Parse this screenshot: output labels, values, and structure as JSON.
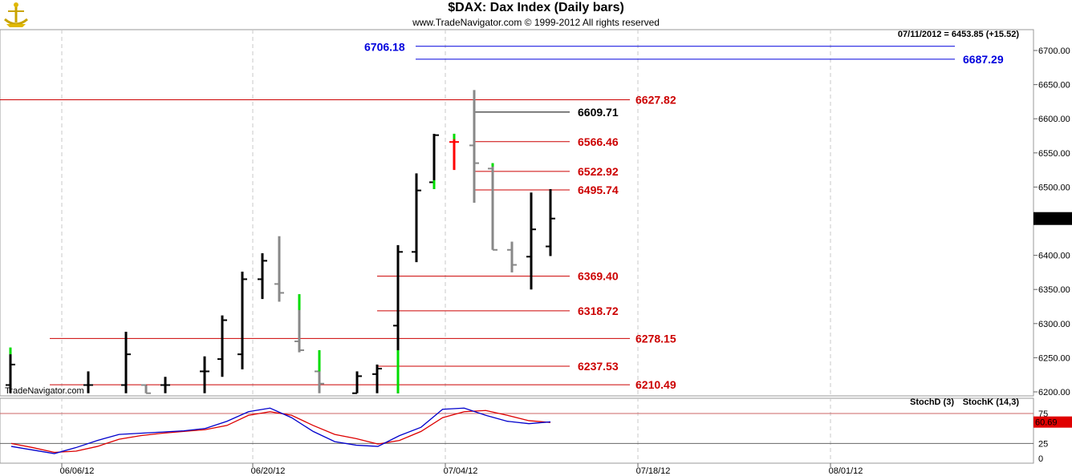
{
  "header": {
    "title": "$DAX:  Dax Index  (Daily bars)",
    "subtitle": "www.TradeNavigator.com © 1999-2012 All rights reserved",
    "last_value_label": "07/11/2012 = 6453.85 (+15.52)",
    "watermark": "TradeNavigator.com",
    "logo_icon": "trade-navigator-logo-icon"
  },
  "chart_data": [
    {
      "type": "ohlc",
      "y_ticks": [
        "6700.00",
        "6650.00",
        "6600.00",
        "6550.00",
        "6500.00",
        "6450.00",
        "6400.00",
        "6350.00",
        "6300.00",
        "6250.00",
        "6200.00"
      ],
      "ylim": [
        6195,
        6735
      ],
      "x_ticks": [
        "06/06/12",
        "06/20/12",
        "07/04/12",
        "07/18/12",
        "08/01/12"
      ],
      "last_price_marker": "6453.85",
      "colors": {
        "up": "#000000",
        "down": "#888888",
        "new_high": "#00dd00",
        "last": "#ff0000"
      },
      "bars": [
        {
          "open": 6210,
          "high": 6260,
          "low": 6198,
          "close": 6240
        },
        {
          "open": 6210,
          "high": 6230,
          "low": 6198,
          "close": 6210
        },
        {
          "open": 6210,
          "high": 6288,
          "low": 6198,
          "close": 6255
        },
        {
          "open": 6210,
          "high": 6210,
          "low": 6198,
          "close": 6198
        },
        {
          "open": 6210,
          "high": 6222,
          "low": 6198,
          "close": 6210
        },
        {
          "open": 6230,
          "high": 6252,
          "low": 6198,
          "close": 6230
        },
        {
          "open": 6248,
          "high": 6312,
          "low": 6222,
          "close": 6305
        },
        {
          "open": 6255,
          "high": 6376,
          "low": 6233,
          "close": 6365
        },
        {
          "open": 6365,
          "high": 6403,
          "low": 6336,
          "close": 6392
        },
        {
          "open": 6358,
          "high": 6428,
          "low": 6332,
          "close": 6345
        },
        {
          "open": 6274,
          "high": 6343,
          "low": 6258,
          "close": 6261
        },
        {
          "open": 6230,
          "high": 6261,
          "low": 6198,
          "close": 6212
        },
        {
          "open": 6198,
          "high": 6230,
          "low": 6198,
          "close": 6223
        },
        {
          "open": 6226,
          "high": 6240,
          "low": 6198,
          "close": 6234
        },
        {
          "open": 6297,
          "high": 6415,
          "low": 6198,
          "close": 6405
        },
        {
          "open": 6405,
          "high": 6520,
          "low": 6390,
          "close": 6495
        },
        {
          "open": 6507,
          "high": 6578,
          "low": 6497,
          "close": 6576
        },
        {
          "open": 6566,
          "high": 6578,
          "low": 6525,
          "close": 6566
        },
        {
          "open": 6561,
          "high": 6642,
          "low": 6477,
          "close": 6535
        },
        {
          "open": 6527,
          "high": 6535,
          "low": 6408,
          "close": 6408
        },
        {
          "open": 6408,
          "high": 6420,
          "low": 6375,
          "close": 6386
        },
        {
          "open": 6398,
          "high": 6492,
          "low": 6350,
          "close": 6438
        },
        {
          "open": 6413,
          "high": 6497,
          "low": 6399,
          "close": 6453.85
        }
      ],
      "levels": [
        {
          "label": "6706.18",
          "value": 6706.18,
          "color": "#0000dd"
        },
        {
          "label": "6687.29",
          "value": 6687.29,
          "color": "#0000dd"
        },
        {
          "label": "6627.82",
          "value": 6627.82,
          "color": "#cc0000"
        },
        {
          "label": "6609.71",
          "value": 6609.71,
          "color": "#000000"
        },
        {
          "label": "6566.46",
          "value": 6566.46,
          "color": "#cc0000"
        },
        {
          "label": "6522.92",
          "value": 6522.92,
          "color": "#cc0000"
        },
        {
          "label": "6495.74",
          "value": 6495.74,
          "color": "#cc0000"
        },
        {
          "label": "6369.40",
          "value": 6369.4,
          "color": "#cc0000"
        },
        {
          "label": "6318.72",
          "value": 6318.72,
          "color": "#cc0000"
        },
        {
          "label": "6278.15",
          "value": 6278.15,
          "color": "#cc0000"
        },
        {
          "label": "6237.53",
          "value": 6237.53,
          "color": "#cc0000"
        },
        {
          "label": "6210.49",
          "value": 6210.49,
          "color": "#cc0000"
        }
      ]
    },
    {
      "type": "line",
      "ylim": [
        0,
        100
      ],
      "y_ticks": [
        "75",
        "25",
        "0"
      ],
      "last_value_marker": "60.69",
      "series": [
        {
          "name": "StochD (3)",
          "color": "#dd0000",
          "values": [
            25,
            18,
            10,
            12,
            20,
            32,
            38,
            42,
            45,
            48,
            55,
            72,
            78,
            72,
            55,
            40,
            33,
            24,
            30,
            45,
            68,
            78,
            80,
            72,
            63,
            60
          ]
        },
        {
          "name": "StochK (14,3)",
          "color": "#0000cc",
          "values": [
            20,
            14,
            8,
            18,
            30,
            40,
            42,
            44,
            46,
            50,
            62,
            78,
            84,
            68,
            45,
            28,
            22,
            20,
            38,
            52,
            82,
            84,
            72,
            62,
            58,
            61
          ]
        }
      ]
    }
  ]
}
